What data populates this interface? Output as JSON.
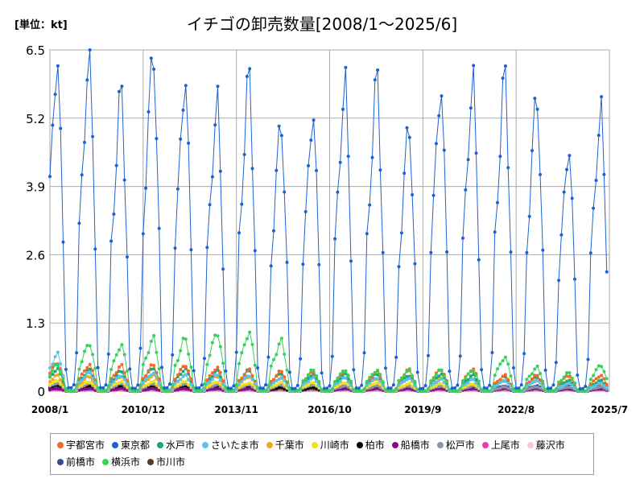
{
  "unit_label": "[単位：kt]",
  "chart_data": {
    "type": "line",
    "title": "イチゴの卸売数量[2008/1～2025/6]",
    "ylabel": "kt",
    "ylim": [
      0,
      6.5
    ],
    "y_ticks": [
      "0",
      "1.3",
      "2.6",
      "3.9",
      "5.2",
      "6.5"
    ],
    "x_ticks": [
      "2008/1",
      "2010/12",
      "2013/11",
      "2016/10",
      "2019/9",
      "2022/8",
      "2025/7"
    ],
    "grid": true,
    "legend_position": "bottom",
    "series": [
      {
        "name": "宇都宮市",
        "color": "#f26a2a",
        "peaks": [
          0.55,
          0.5,
          0.48,
          0.5,
          0.5,
          0.45,
          0.4,
          0.38,
          0.38,
          0.38,
          0.36,
          0.4,
          0.42,
          0.42,
          0.3,
          0.3,
          0.3,
          0.3
        ]
      },
      {
        "name": "東京都",
        "color": "#1e62d0",
        "peaks": [
          6.3,
          6.4,
          5.7,
          6.5,
          5.95,
          5.5,
          6.0,
          5.15,
          5.3,
          5.85,
          5.95,
          5.1,
          5.8,
          5.9,
          6.0,
          5.65,
          4.65,
          5.35
        ]
      },
      {
        "name": "水戸市",
        "color": "#1aa67a",
        "peaks": [
          0.42,
          0.4,
          0.38,
          0.45,
          0.42,
          0.38,
          0.4,
          0.35,
          0.32,
          0.32,
          0.32,
          0.3,
          0.32,
          0.3,
          0.28,
          0.28,
          0.2,
          0.2
        ]
      },
      {
        "name": "さいたま市",
        "color": "#5ec2e8",
        "peaks": [
          0.7,
          0.35,
          0.3,
          0.35,
          0.3,
          0.3,
          0.3,
          0.25,
          0.25,
          0.25,
          0.25,
          0.25,
          0.22,
          0.22,
          0.2,
          0.2,
          0.15,
          0.15
        ]
      },
      {
        "name": "千葉市",
        "color": "#f0a81c",
        "peaks": [
          0.3,
          0.28,
          0.28,
          0.3,
          0.3,
          0.28,
          0.28,
          0.26,
          0.26,
          0.26,
          0.24,
          0.24,
          0.24,
          0.24,
          0.22,
          0.22,
          0.2,
          0.2
        ]
      },
      {
        "name": "川崎市",
        "color": "#f2e21b",
        "peaks": [
          0.2,
          0.18,
          0.18,
          0.18,
          0.18,
          0.18,
          0.16,
          0.16,
          0.16,
          0.16,
          0.16,
          0.14,
          0.14,
          0.14,
          0.2,
          0.2,
          0.15,
          0.15
        ]
      },
      {
        "name": "柏市",
        "color": "#000000",
        "peaks": [
          0.12,
          0.1,
          0.1,
          0.1,
          0.1,
          0.1,
          0.08,
          0.08,
          0.08,
          0.08,
          0.08,
          0.06,
          0.06,
          0.06,
          0.06,
          0.06,
          0.05,
          0.05
        ]
      },
      {
        "name": "船橋市",
        "color": "#8b0a8b",
        "peaks": [
          0.05,
          0.05,
          0.05,
          0.05,
          0.05,
          0.05,
          0.05,
          0.12,
          0.14,
          0.05,
          0.05,
          0.05,
          0.05,
          0.05,
          0.05,
          0.05,
          0.05,
          0.05
        ]
      },
      {
        "name": "松戸市",
        "color": "#8a96a8",
        "peaks": [
          0.15,
          0.14,
          0.14,
          0.14,
          0.14,
          0.12,
          0.12,
          0.12,
          0.12,
          0.1,
          0.1,
          0.1,
          0.1,
          0.1,
          0.08,
          0.08,
          0.08,
          0.08
        ]
      },
      {
        "name": "上尾市",
        "color": "#e83cb0",
        "peaks": [
          0.03,
          0.03,
          0.03,
          0.03,
          0.03,
          0.03,
          0.03,
          0.03,
          0.03,
          0.03,
          0.03,
          0.03,
          0.03,
          0.03,
          0.03,
          0.03,
          0.03,
          0.03
        ]
      },
      {
        "name": "藤沢市",
        "color": "#f6c8d8",
        "peaks": [
          0.04,
          0.04,
          0.04,
          0.04,
          0.04,
          0.04,
          0.04,
          0.04,
          0.04,
          0.04,
          0.04,
          0.04,
          0.04,
          0.04,
          0.04,
          0.04,
          0.04,
          0.04
        ]
      },
      {
        "name": "前橋市",
        "color": "#3d4a8a",
        "peaks": [
          0.1,
          0.1,
          0.1,
          0.1,
          0.1,
          0.1,
          0.1,
          0.1,
          0.1,
          0.1,
          0.1,
          0.1,
          0.1,
          0.1,
          0.1,
          0.1,
          0.1,
          0.1
        ]
      },
      {
        "name": "横浜市",
        "color": "#35d35c",
        "peaks": [
          0.5,
          0.92,
          0.88,
          1.0,
          1.0,
          1.12,
          1.12,
          0.95,
          0.4,
          0.4,
          0.4,
          0.4,
          0.4,
          0.4,
          0.65,
          0.45,
          0.35,
          0.5
        ]
      },
      {
        "name": "市川市",
        "color": "#5a3a2a",
        "peaks": [
          0.05,
          0.05,
          0.05,
          0.05,
          0.05,
          0.05,
          0.05,
          0.05,
          0.05,
          0.05,
          0.05,
          0.05,
          0.05,
          0.05,
          0.05,
          0.05,
          0.05,
          0.05
        ]
      }
    ]
  }
}
